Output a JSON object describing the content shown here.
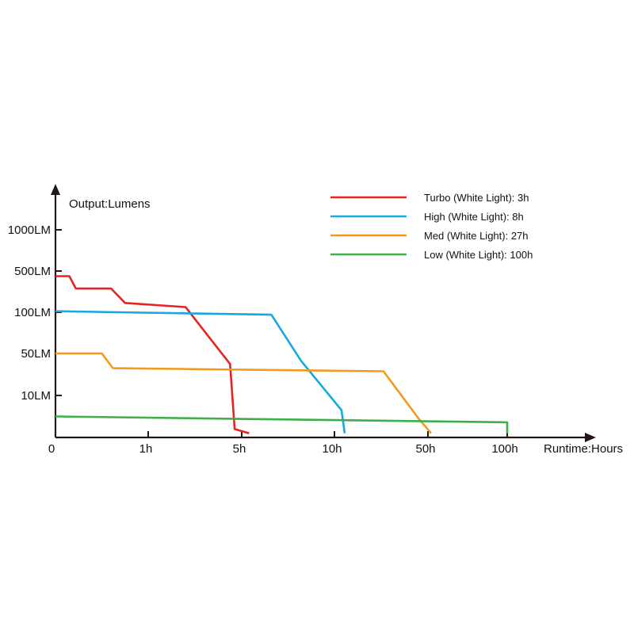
{
  "chart_data": {
    "type": "line",
    "title": "",
    "ylabel": "Output:Lumens",
    "xlabel": "Runtime:Hours",
    "x_ticks": [
      "0",
      "1h",
      "5h",
      "10h",
      "50h",
      "100h"
    ],
    "y_ticks": [
      "1000LM",
      "500LM",
      "100LM",
      "50LM",
      "10LM"
    ],
    "legend_placement": "top-right",
    "grid": false,
    "series": [
      {
        "name": "Turbo (White Light): 3h",
        "color": "#e52421",
        "points": [
          [
            0,
            450
          ],
          [
            0.15,
            450
          ],
          [
            0.22,
            330
          ],
          [
            0.6,
            330
          ],
          [
            0.75,
            190
          ],
          [
            2.6,
            150
          ],
          [
            4.5,
            40
          ],
          [
            4.7,
            2
          ],
          [
            5.4,
            1
          ]
        ]
      },
      {
        "name": "High (White Light): 8h",
        "color": "#17a8e0",
        "points": [
          [
            0,
            110
          ],
          [
            6.6,
            97
          ],
          [
            8.2,
            43
          ],
          [
            13.0,
            6.5
          ],
          [
            14.4,
            1
          ]
        ]
      },
      {
        "name": "Med (White Light): 27h",
        "color": "#f39a1e",
        "points": [
          [
            0,
            50
          ],
          [
            0.5,
            50
          ],
          [
            0.62,
            36
          ],
          [
            31,
            33
          ],
          [
            46,
            4.5
          ],
          [
            52,
            1
          ]
        ]
      },
      {
        "name": "Low (White Light): 100h",
        "color": "#3eb049",
        "points": [
          [
            0,
            5
          ],
          [
            100,
            3.6
          ],
          [
            100,
            1
          ]
        ]
      }
    ]
  }
}
